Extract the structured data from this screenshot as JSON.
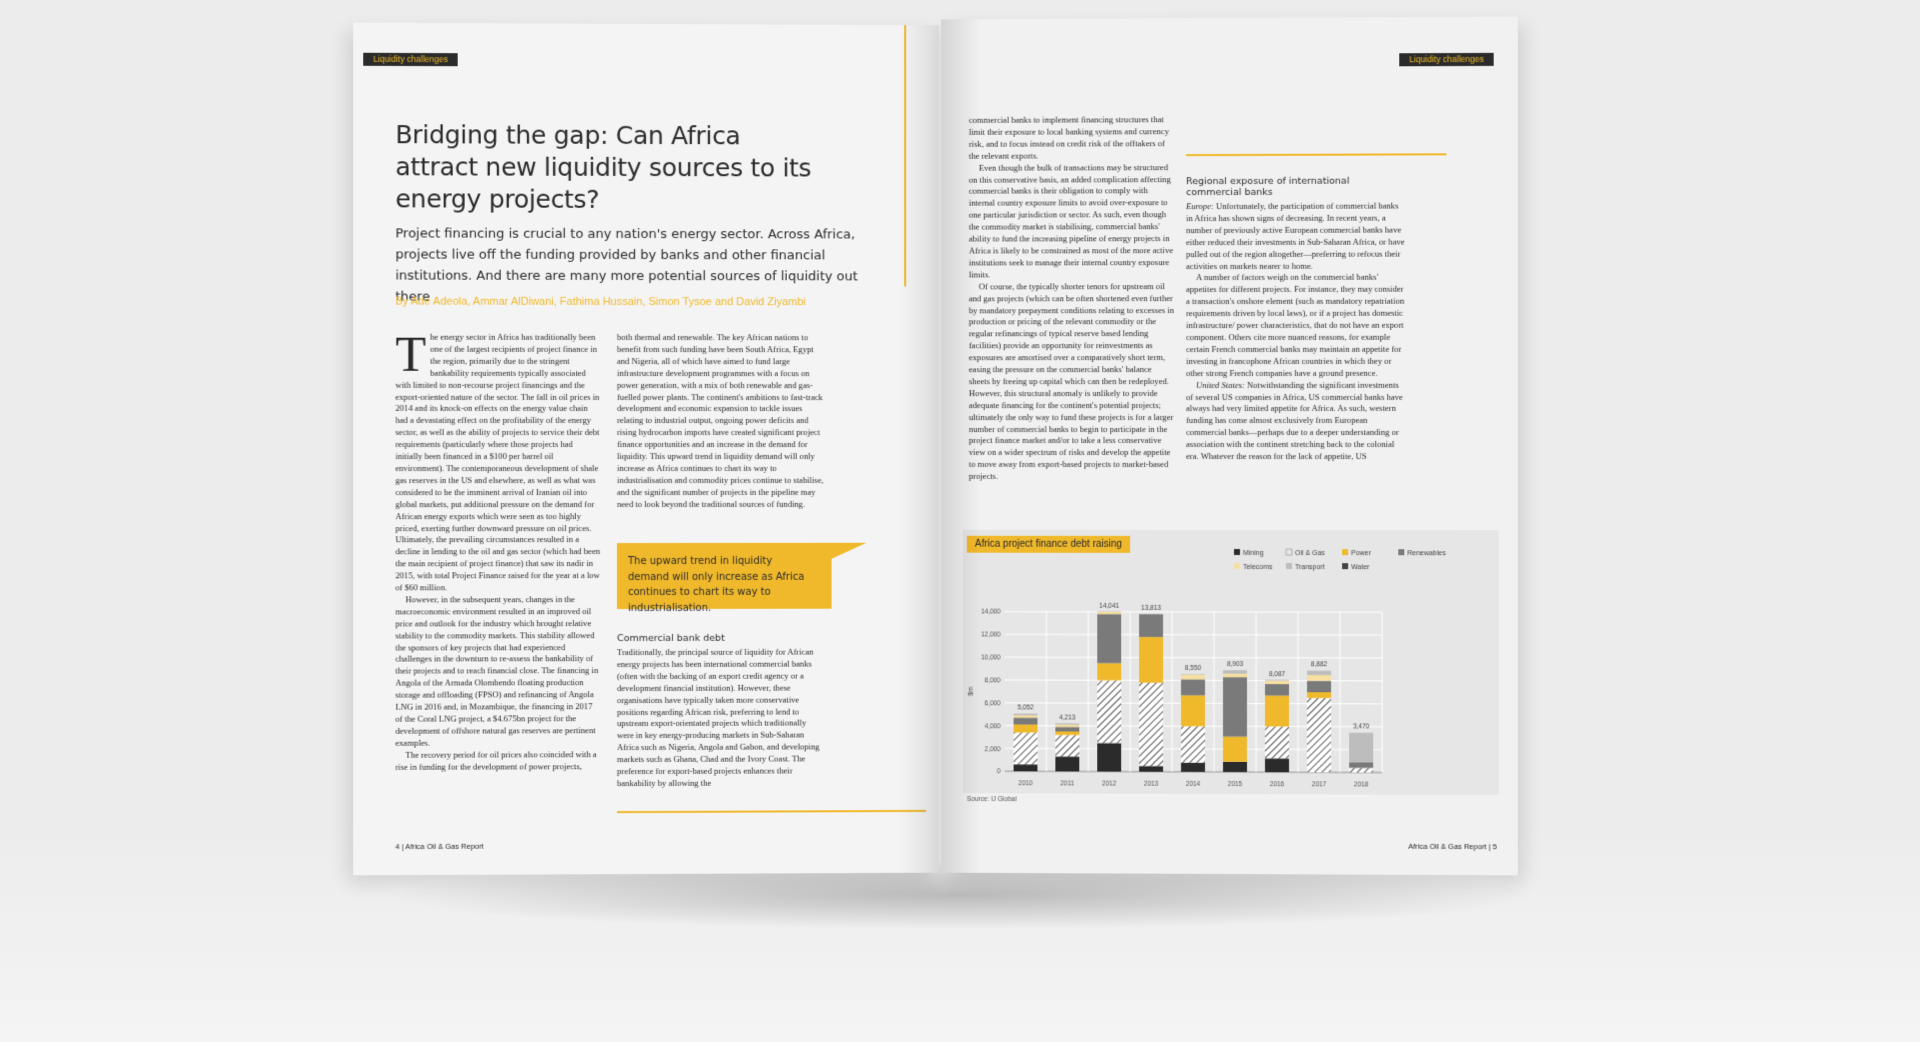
{
  "left_page": {
    "section_tag": "Liquidity challenges",
    "title": "Bridging the gap: Can Africa attract new liquidity sources to its energy projects?",
    "standfirst": "Project financing is crucial to any nation's energy sector. Across Africa, projects live off the funding provided by banks and other financial institutions. And there are many more potential sources of liquidity out there",
    "byline": "By Ade Adeola, Ammar AlDiwani, Fathima Hussain, Simon Tysoe and David Ziyambi",
    "col1": {
      "dropcap": "T",
      "p1": "he energy sector in Africa has traditionally been one of the largest recipients of project finance in the region, primarily due to the stringent bankability requirements typically associated with limited to non-recourse project financings and the export-oriented nature of the sector. The fall in oil prices in 2014 and its knock-on effects on the energy value chain had a devastating effect on the profitability of the energy sector, as well as the ability of projects to service their debt requirements (particularly where those projects had initially been financed in a $100 per barrel oil environment). The contemporaneous development of shale gas reserves in the US and elsewhere, as well as what was considered to be the imminent arrival of Iranian oil into global markets, put additional pressure on the demand for African energy exports which were seen as too highly priced, exerting further downward pressure on oil prices. Ultimately, the prevailing circumstances resulted in a decline in lending to the oil and gas sector (which had been the main recipient of project finance) that saw its nadir in 2015, with total Project Finance raised for the year at a low of $60 million.",
      "p2": "However, in the subsequent years, changes in the macroeconomic environment resulted in an improved oil price and outlook for the industry which brought relative stability to the commodity markets. This stability allowed the sponsors of key projects that had experienced challenges in the downturn to re-assess the bankability of their projects and to reach financial close. The financing in Angola of the Armada Olombendo floating production storage and offloading (FPSO) and refinancing of Angola LNG in 2016 and, in Mozambique, the financing in 2017 of the Coral LNG project, a $4.675bn project for the development of offshore natural gas reserves are pertinent examples.",
      "p3": "The recovery period for oil prices also coincided with a rise in funding for the development of power projects,"
    },
    "col2": {
      "p1": "both thermal and renewable. The key African nations to benefit from such funding have been South Africa, Egypt and Nigeria, all of which have aimed to fund large infrastructure development programmes with a focus on power generation, with a mix of both renewable and gas-fuelled power plants. The continent's ambitions to fast-track development and economic expansion to tackle issues relating to industrial output, ongoing power deficits and rising hydrocarbon imports have created significant project finance opportunities and an increase in the demand for liquidity. This upward trend in liquidity demand will only increase as Africa continues to chart its way to industrialisation and commodity prices continue to stabilise, and the significant number of projects in the pipeline may need to look beyond the traditional sources of funding."
    },
    "pullquote": "The upward trend in liquidity demand will only increase as Africa continues to chart its way to industrialisation.",
    "subhead": "Commercial bank debt",
    "col2b": {
      "p1": "Traditionally, the principal source of liquidity for African energy projects has been international commercial banks (often with the backing of an export credit agency or a development financial institution). However, these organisations have typically taken more conservative positions regarding African risk, preferring to lend to upstream export-orientated projects which traditionally were in key energy-producing markets in Sub-Saharan Africa such as Nigeria, Angola and Gabon, and developing markets such as Ghana, Chad and the Ivory Coast. The preference for export-based projects enhances their bankability by allowing the"
    },
    "folio": "4 | Africa Oil & Gas Report"
  },
  "right_page": {
    "section_tag": "Liquidity challenges",
    "col1": {
      "p1": "commercial banks to implement financing structures that limit their exposure to local banking systems and currency risk, and to focus instead on credit risk of the offtakers of the relevant exports.",
      "p2": "Even though the bulk of transactions may be structured on this conservative basis, an added complication affecting commercial banks is their obligation to comply with internal country exposure limits to avoid over-exposure to one particular jurisdiction or sector. As such, even though the commodity market is stabilising, commercial banks' ability to fund the increasing pipeline of energy projects in Africa is likely to be constrained as most of the more active institutions seek to manage their internal country exposure limits.",
      "p3": "Of course, the typically shorter tenors for upstream oil and gas projects (which can be often shortened even further by mandatory prepayment conditions relating to excesses in production or pricing of the relevant commodity or the regular refinancings of typical reserve based lending facilities) provide an opportunity for reinvestments as exposures are amortised over a comparatively short term, easing the pressure on the commercial banks' balance sheets by freeing up capital which can then be redeployed. However, this structural anomaly is unlikely to provide adequate financing for the continent's potential projects; ultimately the only way to fund these projects is for a larger number of commercial banks to begin to participate in the project finance market and/or to take a less conservative view on a wider spectrum of risks and develop the appetite to move away from export-based projects to market-based projects."
    },
    "subhead": "Regional exposure of international commercial banks",
    "col2": {
      "p1_label": "Europe:",
      "p1": " Unfortunately, the participation of commercial banks in Africa has shown signs of decreasing. In recent years, a number of previously active European commercial banks have either reduced their investments in Sub-Saharan Africa, or have pulled out of the region altogether—preferring to refocus their activities on markets nearer to home.",
      "p2": "A number of factors weigh on the commercial banks' appetites for different projects. For instance, they may consider a transaction's onshore element (such as mandatory repatriation requirements driven by local laws), or if a project has domestic infrastructure/ power characteristics, that do not have an export component. Others cite more nuanced reasons, for example certain French commercial banks may maintain an appetite for investing in francophone African countries in which they or other strong French companies have a ground presence.",
      "p3_label": "United States:",
      "p3": " Notwithstanding the significant investments of several US companies in Africa, US commercial banks have always had very limited appetite for Africa. As such, western funding has come almost exclusively from European commercial banks—perhaps due to a deeper understanding or association with the continent stretching back to the colonial era. Whatever the reason for the lack of appetite, US"
    },
    "chart_title": "Africa project finance debt raising",
    "source": "Source: IJ Global",
    "folio": "Africa Oil & Gas Report | 5"
  },
  "chart_data": {
    "type": "bar",
    "stacked": true,
    "title": "Africa project finance debt raising",
    "ylabel": "$m",
    "ylim": [
      0,
      14000
    ],
    "yticks": [
      0,
      2000,
      4000,
      6000,
      8000,
      10000,
      12000,
      14000
    ],
    "ytick_labels": [
      "0",
      "2,000",
      "4,000",
      "6,000",
      "8,000",
      "10,000",
      "12,000",
      "14,000"
    ],
    "categories": [
      "2010",
      "2011",
      "2012",
      "2013",
      "2014",
      "2015",
      "2016",
      "2017",
      "2018"
    ],
    "totals": [
      5052,
      4213,
      14041,
      13813,
      8550,
      8903,
      8087,
      8882,
      3470
    ],
    "total_labels": [
      "5,052",
      "4,213",
      "14,041",
      "13,813",
      "8,550",
      "8,903",
      "8,087",
      "8,882",
      "3,470"
    ],
    "legend_position": "top-right",
    "grid": true,
    "series": [
      {
        "name": "Mining",
        "color": "#2b2b2b",
        "pattern": "solid",
        "values": [
          600,
          1300,
          2500,
          500,
          800,
          900,
          1200,
          0,
          0
        ]
      },
      {
        "name": "Oil & Gas",
        "color": "#ffffff",
        "pattern": "hatch",
        "values": [
          2800,
          1900,
          5500,
          7300,
          3200,
          0,
          2800,
          6500,
          400
        ]
      },
      {
        "name": "Power",
        "color": "#f0b92b",
        "pattern": "solid",
        "values": [
          700,
          300,
          1500,
          4000,
          2700,
          2200,
          2700,
          500,
          0
        ]
      },
      {
        "name": "Renewables",
        "color": "#7a7a7a",
        "pattern": "solid",
        "values": [
          600,
          400,
          4300,
          2000,
          1400,
          5200,
          1000,
          1000,
          500
        ]
      },
      {
        "name": "Telecoms",
        "color": "#f6dfa0",
        "pattern": "solid",
        "values": [
          200,
          200,
          200,
          0,
          400,
          300,
          300,
          500,
          0
        ]
      },
      {
        "name": "Transport",
        "color": "#bdbdbd",
        "pattern": "solid",
        "values": [
          152,
          113,
          41,
          13,
          50,
          303,
          87,
          382,
          2570
        ]
      },
      {
        "name": "Water",
        "color": "#444444",
        "pattern": "solid",
        "values": [
          0,
          0,
          0,
          0,
          0,
          0,
          0,
          0,
          0
        ]
      }
    ]
  }
}
